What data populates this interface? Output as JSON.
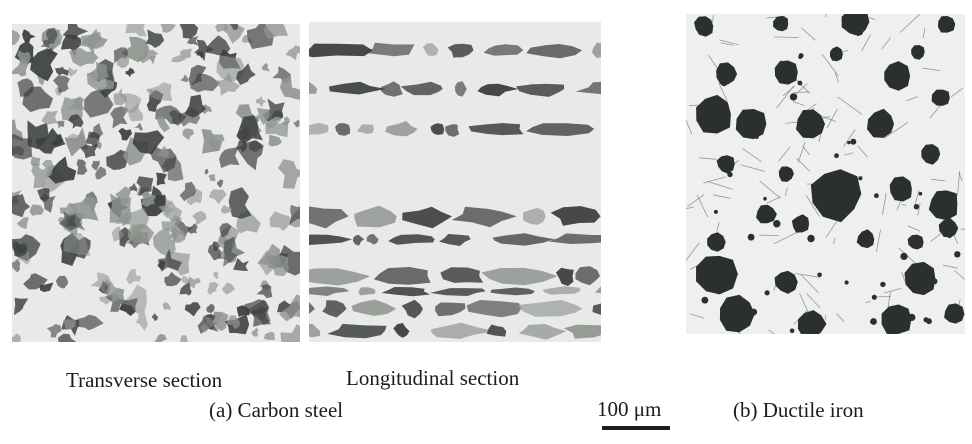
{
  "captions": {
    "transverse": "Transverse section",
    "longitudinal": "Longitudinal section",
    "carbon_steel": "(a) Carbon steel",
    "ductile_iron": "(b) Ductile iron",
    "scale_label": "100 μm"
  },
  "colors": {
    "matrix": "#e9e9e9",
    "pearlite": "#3b3f3d",
    "mid_gray": "#8f948f",
    "graphite": "#2a302d"
  }
}
